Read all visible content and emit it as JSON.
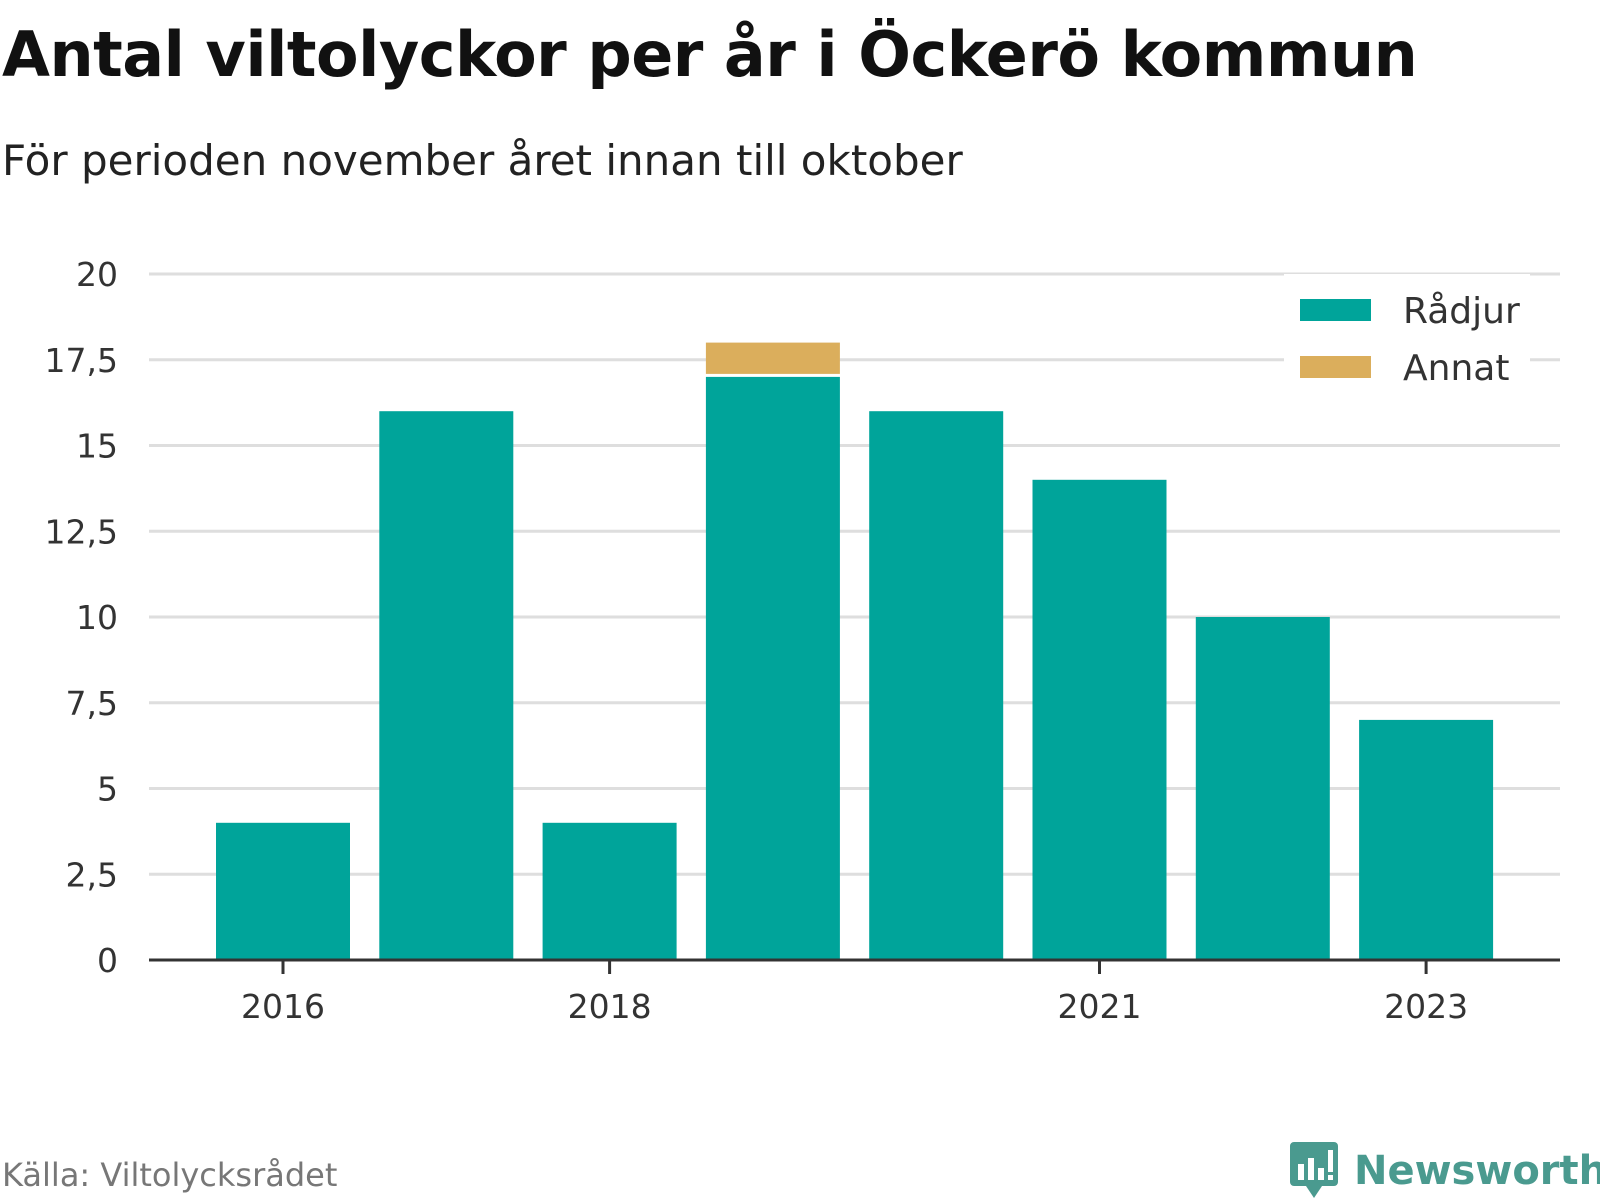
{
  "title": "Antal viltolyckor per år i Öckerö kommun",
  "subtitle": "För perioden november året innan till oktober",
  "source": "Källa: Viltolycksrådet",
  "brand": "Newsworthy",
  "chart_data": {
    "type": "bar",
    "stacked": true,
    "categories": [
      "2016",
      "2017",
      "2018",
      "2019",
      "2020",
      "2021",
      "2022",
      "2023"
    ],
    "x_tick_labels": [
      "2016",
      "2018",
      "2021",
      "2023"
    ],
    "series": [
      {
        "name": "Rådjur",
        "color": "#00a49a",
        "values": [
          4,
          16,
          4,
          17,
          16,
          14,
          10,
          7
        ]
      },
      {
        "name": "Annat",
        "color": "#dbae5c",
        "values": [
          0,
          0,
          0,
          1,
          0,
          0,
          0,
          0
        ]
      }
    ],
    "ylim": [
      0,
      20
    ],
    "y_ticks": [
      "0",
      "2,5",
      "5",
      "7,5",
      "10",
      "12,5",
      "15",
      "17,5",
      "20"
    ],
    "y_tick_values": [
      0,
      2.5,
      5,
      7.5,
      10,
      12.5,
      15,
      17.5,
      20
    ],
    "grid": true,
    "legend_position": "top-right"
  }
}
